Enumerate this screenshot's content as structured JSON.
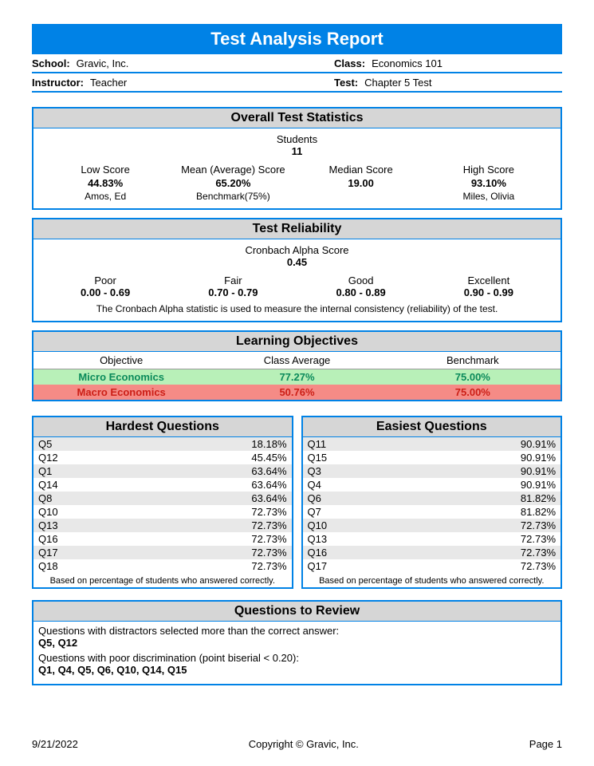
{
  "title": "Test Analysis Report",
  "header": {
    "school_label": "School:",
    "school": "Gravic, Inc.",
    "class_label": "Class:",
    "class": "Economics 101",
    "instructor_label": "Instructor:",
    "instructor": "Teacher",
    "test_label": "Test:",
    "test": "Chapter 5 Test"
  },
  "overall": {
    "heading": "Overall Test Statistics",
    "students_label": "Students",
    "students": "11",
    "cols": [
      {
        "label": "Low Score",
        "value": "44.83%",
        "sub": "Amos, Ed"
      },
      {
        "label": "Mean (Average) Score",
        "value": "65.20%",
        "sub": "Benchmark(75%)"
      },
      {
        "label": "Median Score",
        "value": "19.00",
        "sub": ""
      },
      {
        "label": "High Score",
        "value": "93.10%",
        "sub": "Miles, Olivia"
      }
    ]
  },
  "reliability": {
    "heading": "Test Reliability",
    "metric_label": "Cronbach Alpha Score",
    "metric_value": "0.45",
    "scale": [
      {
        "label": "Poor",
        "range": "0.00 - 0.69"
      },
      {
        "label": "Fair",
        "range": "0.70 - 0.79"
      },
      {
        "label": "Good",
        "range": "0.80 - 0.89"
      },
      {
        "label": "Excellent",
        "range": "0.90 - 0.99"
      }
    ],
    "note": "The Cronbach Alpha statistic is used to measure the internal consistency (reliability) of the test."
  },
  "objectives": {
    "heading": "Learning Objectives",
    "headers": {
      "obj": "Objective",
      "avg": "Class Average",
      "bench": "Benchmark"
    },
    "rows": [
      {
        "name": "Micro Economics",
        "avg": "77.27%",
        "bench": "75.00%",
        "status": "pass"
      },
      {
        "name": "Macro Economics",
        "avg": "50.76%",
        "bench": "75.00%",
        "status": "fail"
      }
    ],
    "colors": {
      "pass_bg": "#b8f0b8",
      "pass_text": "#0a8a5a",
      "fail_bg": "#f58b86",
      "fail_text": "#cc1f17"
    }
  },
  "hardest": {
    "heading": "Hardest Questions",
    "rows": [
      {
        "q": "Q5",
        "pct": "18.18%"
      },
      {
        "q": "Q12",
        "pct": "45.45%"
      },
      {
        "q": "Q1",
        "pct": "63.64%"
      },
      {
        "q": "Q14",
        "pct": "63.64%"
      },
      {
        "q": "Q8",
        "pct": "63.64%"
      },
      {
        "q": "Q10",
        "pct": "72.73%"
      },
      {
        "q": "Q13",
        "pct": "72.73%"
      },
      {
        "q": "Q16",
        "pct": "72.73%"
      },
      {
        "q": "Q17",
        "pct": "72.73%"
      },
      {
        "q": "Q18",
        "pct": "72.73%"
      }
    ],
    "footer": "Based on percentage of students who answered correctly."
  },
  "easiest": {
    "heading": "Easiest Questions",
    "rows": [
      {
        "q": "Q11",
        "pct": "90.91%"
      },
      {
        "q": "Q15",
        "pct": "90.91%"
      },
      {
        "q": "Q3",
        "pct": "90.91%"
      },
      {
        "q": "Q4",
        "pct": "90.91%"
      },
      {
        "q": "Q6",
        "pct": "81.82%"
      },
      {
        "q": "Q7",
        "pct": "81.82%"
      },
      {
        "q": "Q10",
        "pct": "72.73%"
      },
      {
        "q": "Q13",
        "pct": "72.73%"
      },
      {
        "q": "Q16",
        "pct": "72.73%"
      },
      {
        "q": "Q17",
        "pct": "72.73%"
      }
    ],
    "footer": "Based on percentage of students who answered correctly."
  },
  "review": {
    "heading": "Questions to Review",
    "line1": "Questions with distractors selected more than the correct answer:",
    "line1q": "Q5, Q12",
    "line2": "Questions with poor discrimination (point biserial < 0.20):",
    "line2q": "Q1, Q4, Q5, Q6, Q10, Q14, Q15"
  },
  "footer": {
    "date": "9/21/2022",
    "copyright": "Copyright © Gravic, Inc.",
    "page": "Page 1"
  }
}
